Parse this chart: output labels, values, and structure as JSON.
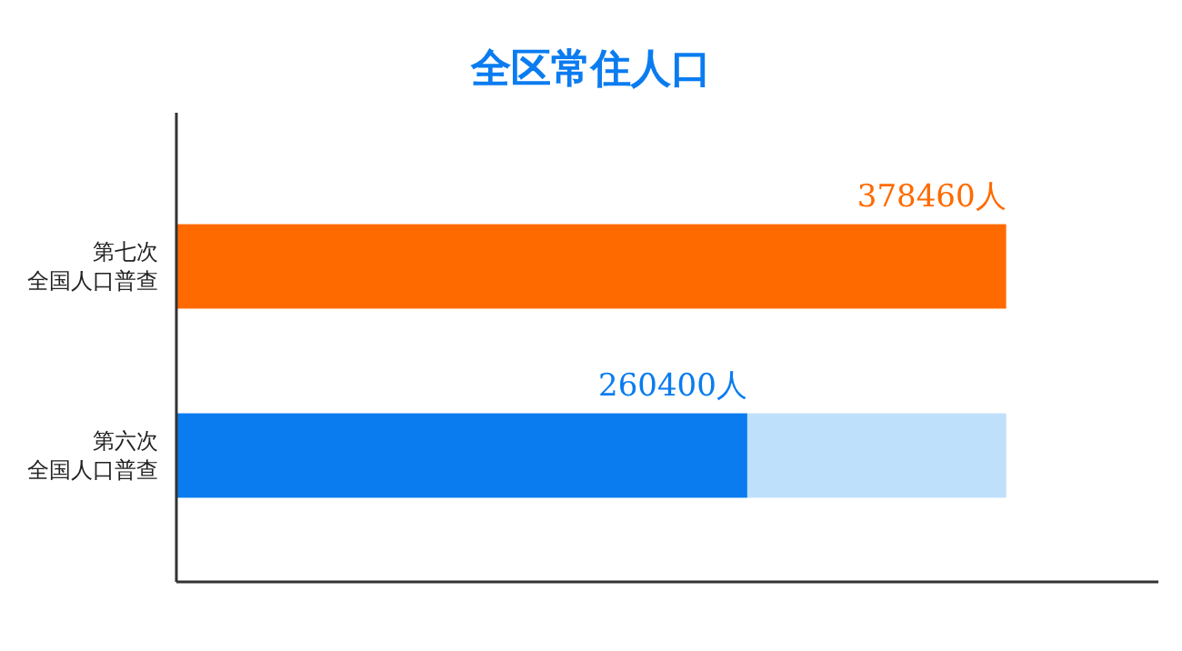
{
  "chart_data": {
    "type": "bar",
    "orientation": "horizontal",
    "stacked": true,
    "title": "全区常住人口",
    "categories": [
      "第七次全国人口普查",
      "第六次全国人口普查"
    ],
    "series": [
      {
        "colors": [
          "#ff6a00",
          "#0a7cf0"
        ],
        "values": [
          378460,
          260400
        ],
        "value_labels": [
          "378460人",
          "260400人"
        ]
      },
      {
        "color": "#bfe0fb",
        "values": [
          null,
          118060
        ]
      }
    ],
    "grid": false
  }
}
